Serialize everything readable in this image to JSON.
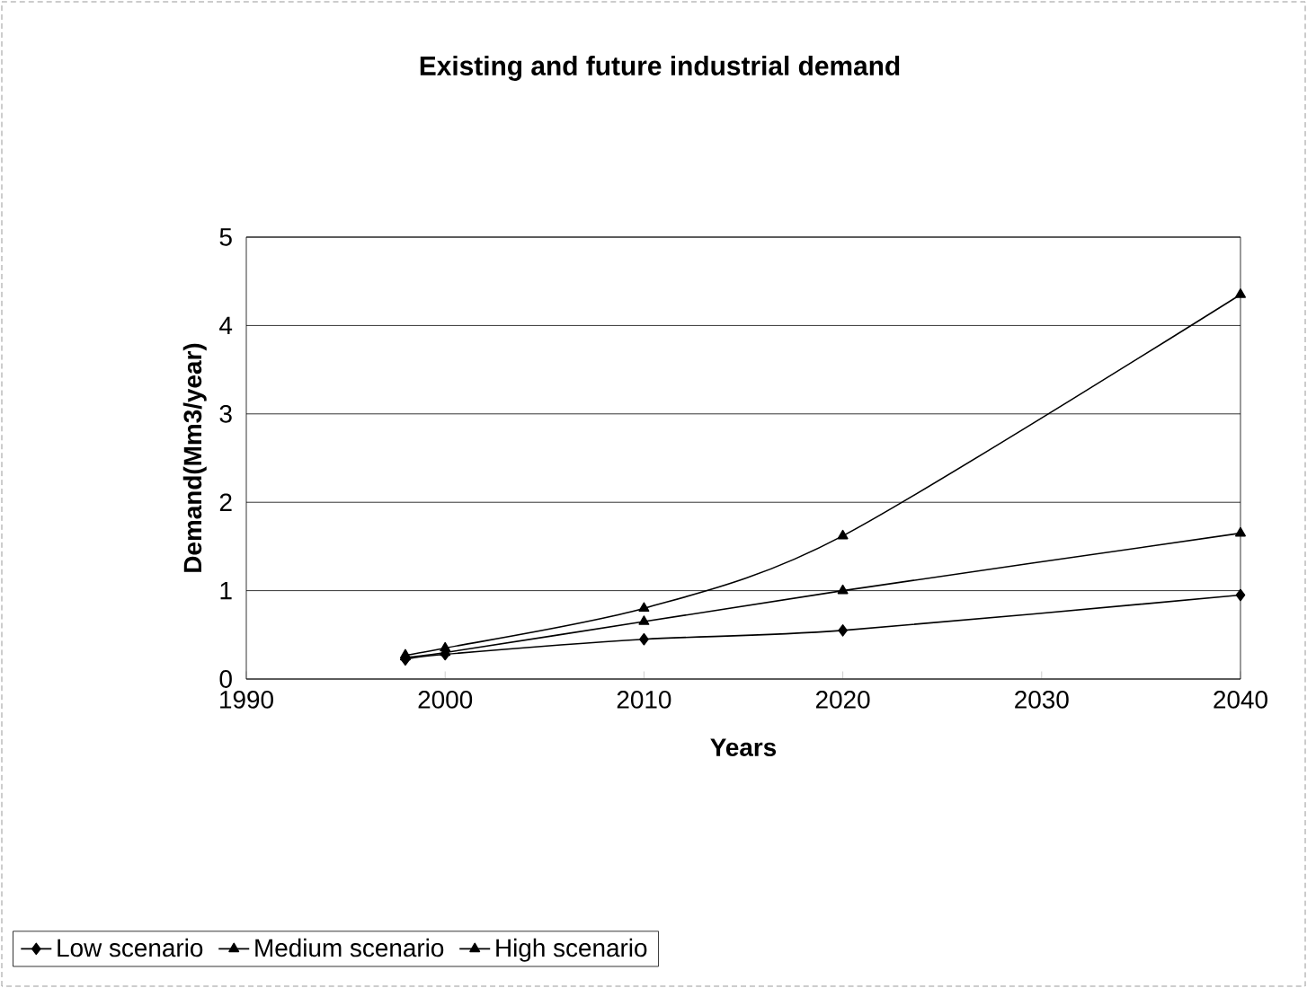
{
  "chart_data": {
    "type": "line",
    "title": "Existing and future industrial demand",
    "xlabel": "Years",
    "ylabel": "Demand(Mm3/year)",
    "x": [
      1998,
      2000,
      2010,
      2020,
      2040
    ],
    "series": [
      {
        "name": "Low scenario",
        "color": "#000000",
        "marker": "diamond",
        "values": [
          0.22,
          0.28,
          0.45,
          0.55,
          0.95
        ]
      },
      {
        "name": "Medium scenario",
        "color": "#000000",
        "marker": "triangle",
        "values": [
          0.25,
          0.3,
          0.65,
          1.0,
          1.65
        ]
      },
      {
        "name": "High scenario",
        "color": "#000000",
        "marker": "triangle",
        "values": [
          0.27,
          0.35,
          0.8,
          1.62,
          4.35
        ]
      }
    ],
    "xlim": [
      1990,
      2040
    ],
    "xticks": [
      1990,
      2000,
      2010,
      2020,
      2030,
      2040
    ],
    "ylim": [
      0,
      5
    ],
    "yticks": [
      0,
      1,
      2,
      3,
      4,
      5
    ],
    "grid": "y",
    "legend": "bottom",
    "line_style": "solid"
  }
}
